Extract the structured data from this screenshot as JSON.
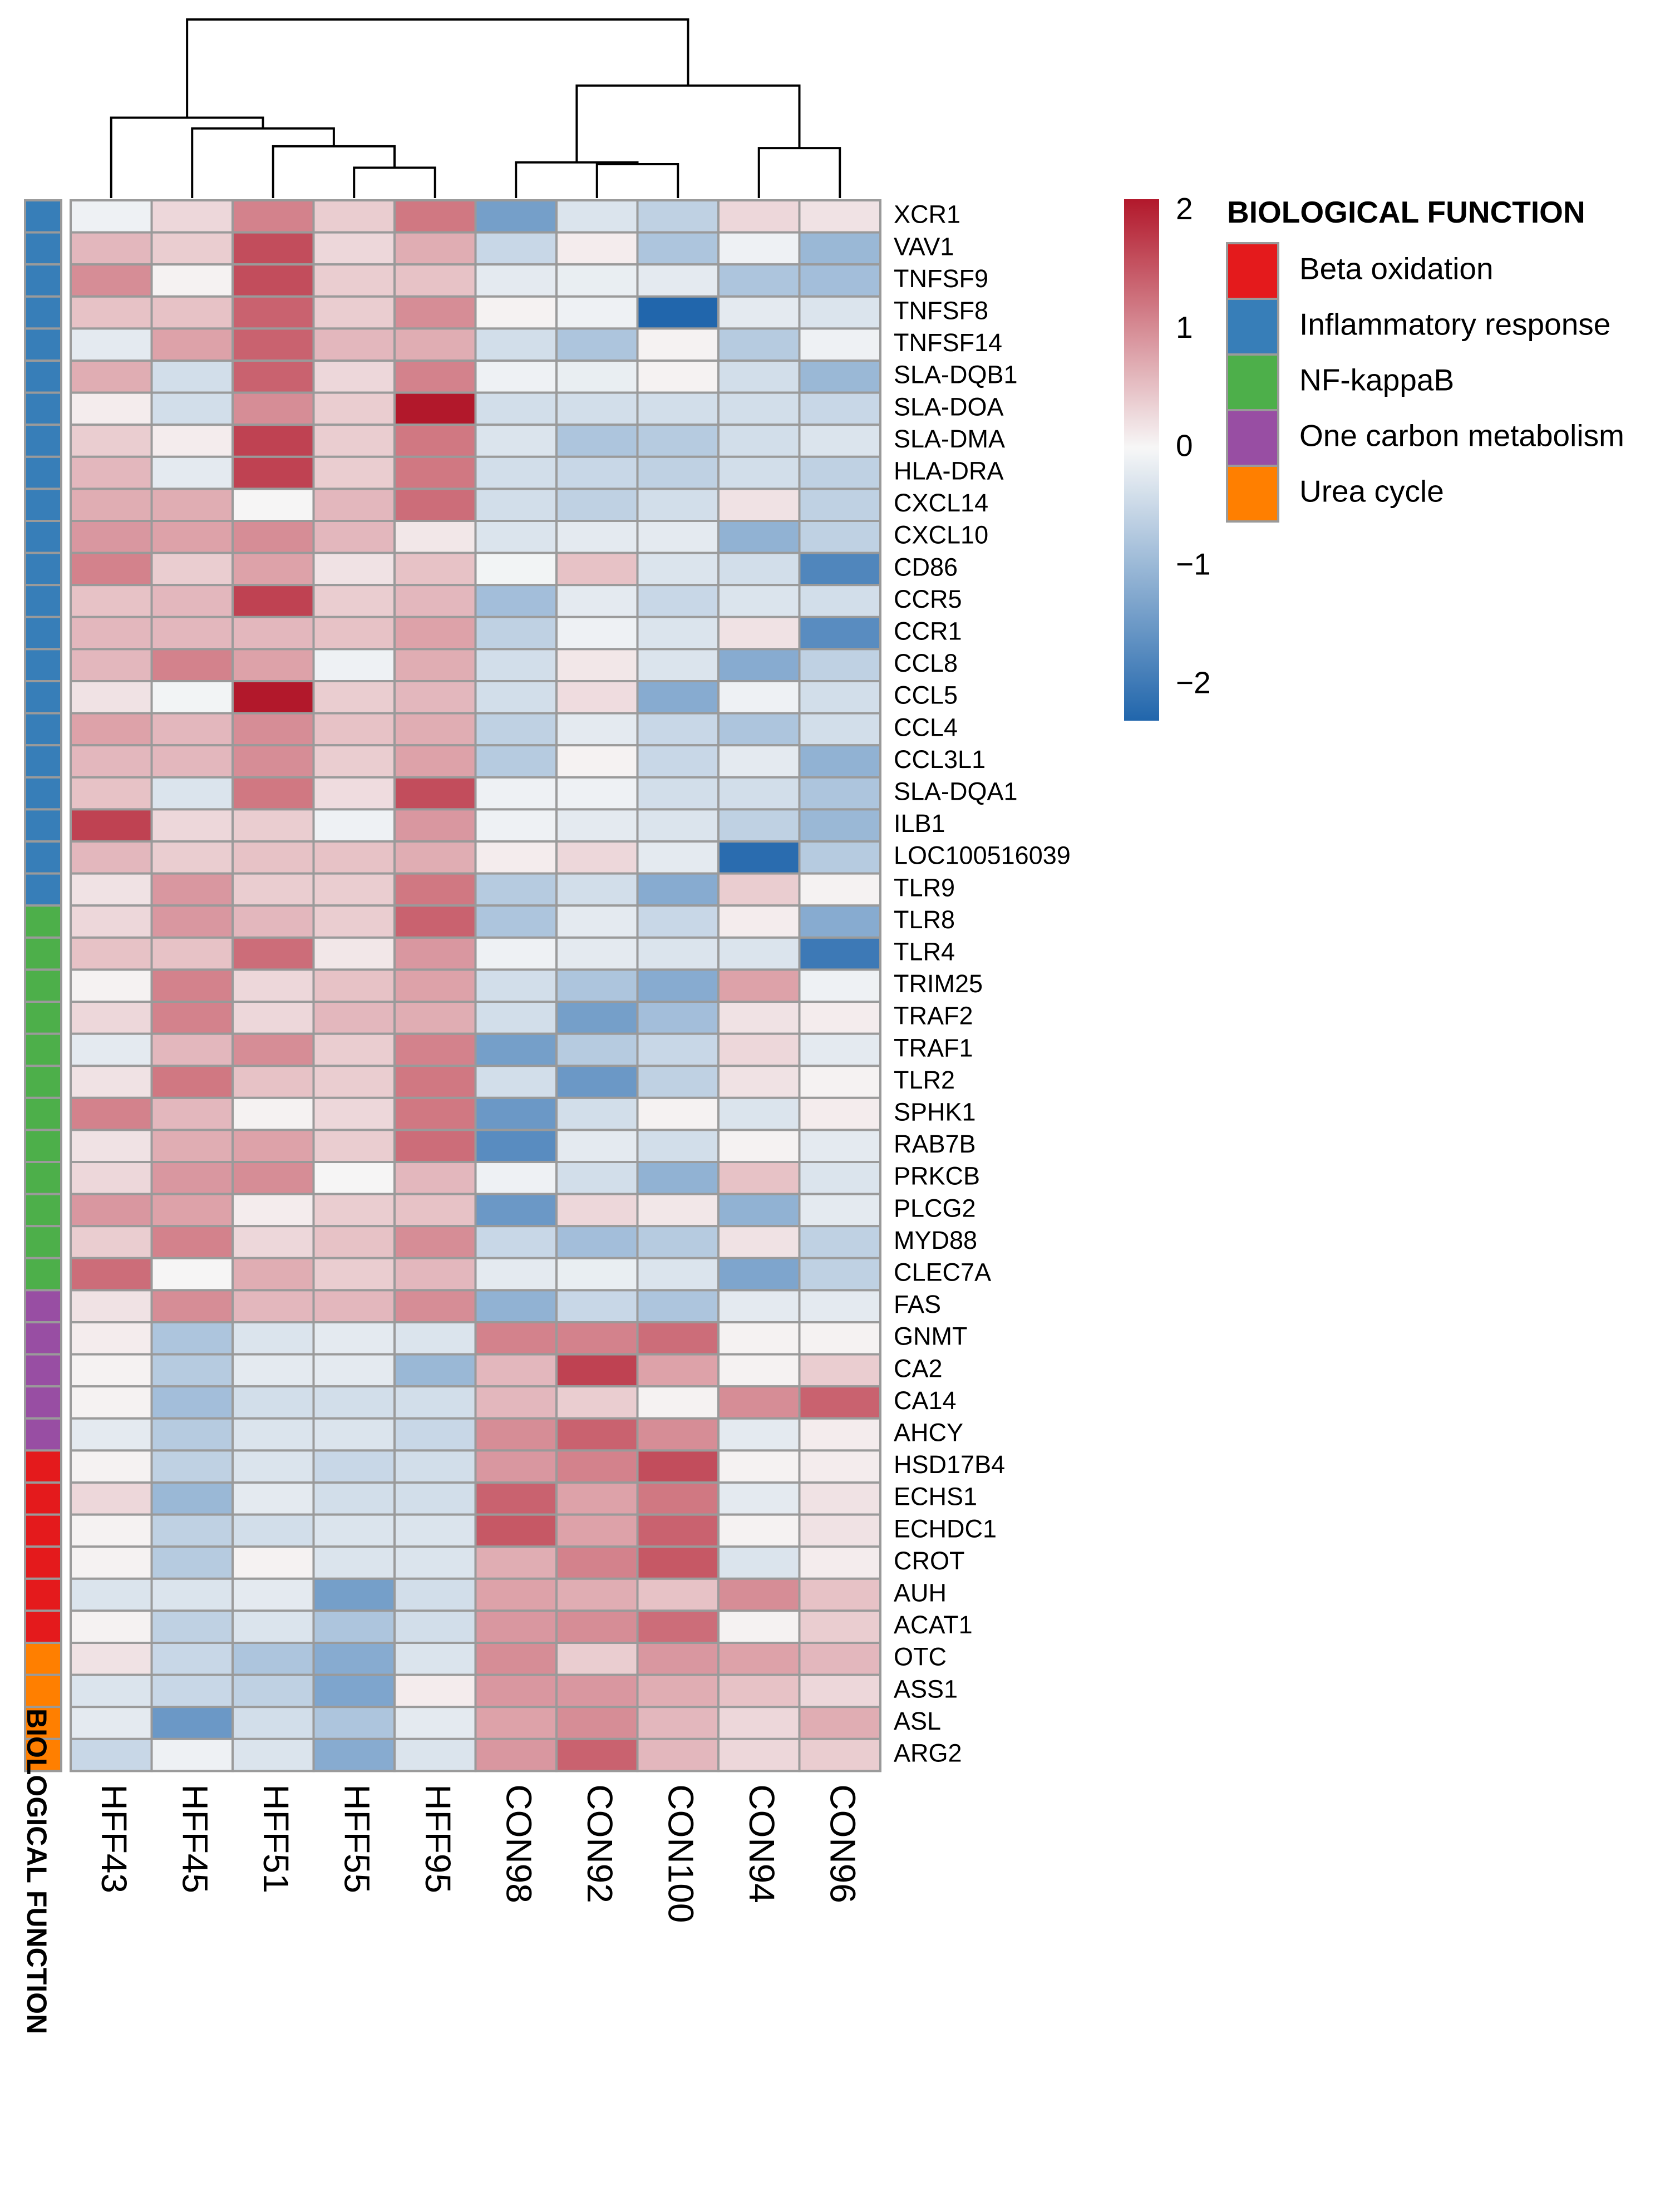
{
  "chart_data": {
    "type": "heatmap",
    "title": "",
    "columns": [
      "HFF43",
      "HFF45",
      "HFF51",
      "HFF55",
      "HFF95",
      "CON98",
      "CON92",
      "CON100",
      "CON94",
      "CON96"
    ],
    "rows": [
      "XCR1",
      "VAV1",
      "TNFSF9",
      "TNFSF8",
      "TNFSF14",
      "SLA-DQB1",
      "SLA-DOA",
      "SLA-DMA",
      "HLA-DRA",
      "CXCL14",
      "CXCL10",
      "CD86",
      "CCR5",
      "CCR1",
      "CCL8",
      "CCL5",
      "CCL4",
      "CCL3L1",
      "SLA-DQA1",
      "ILB1",
      "LOC100516039",
      "TLR9",
      "TLR8",
      "TLR4",
      "TRIM25",
      "TRAF2",
      "TRAF1",
      "TLR2",
      "SPHK1",
      "RAB7B",
      "PRKCB",
      "PLCG2",
      "MYD88",
      "CLEC7A",
      "FAS",
      "GNMT",
      "CA2",
      "CA14",
      "AHCY",
      "HSD17B4",
      "ECHS1",
      "ECHDC1",
      "CROT",
      "AUH",
      "ACAT1",
      "OTC",
      "ASS1",
      "ASL",
      "ARG2"
    ],
    "row_groups": [
      "Inflammatory response",
      "Inflammatory response",
      "Inflammatory response",
      "Inflammatory response",
      "Inflammatory response",
      "Inflammatory response",
      "Inflammatory response",
      "Inflammatory response",
      "Inflammatory response",
      "Inflammatory response",
      "Inflammatory response",
      "Inflammatory response",
      "Inflammatory response",
      "Inflammatory response",
      "Inflammatory response",
      "Inflammatory response",
      "Inflammatory response",
      "Inflammatory response",
      "Inflammatory response",
      "Inflammatory response",
      "Inflammatory response",
      "Inflammatory response",
      "NF-kappaB",
      "NF-kappaB",
      "NF-kappaB",
      "NF-kappaB",
      "NF-kappaB",
      "NF-kappaB",
      "NF-kappaB",
      "NF-kappaB",
      "NF-kappaB",
      "NF-kappaB",
      "NF-kappaB",
      "NF-kappaB",
      "One carbon metabolism",
      "One carbon metabolism",
      "One carbon metabolism",
      "One carbon metabolism",
      "One carbon metabolism",
      "Beta oxidation",
      "Beta oxidation",
      "Beta oxidation",
      "Beta oxidation",
      "Beta oxidation",
      "Beta oxidation",
      "Urea cycle",
      "Urea cycle",
      "Urea cycle",
      "Urea cycle"
    ],
    "values": [
      [
        -0.1,
        0.3,
        1.1,
        0.4,
        1.2,
        -1.4,
        -0.3,
        -0.6,
        0.3,
        0.2
      ],
      [
        0.6,
        0.4,
        1.6,
        0.3,
        0.7,
        -0.5,
        0.1,
        -0.8,
        -0.1,
        -1.0
      ],
      [
        1.0,
        0.05,
        1.6,
        0.4,
        0.5,
        -0.2,
        -0.15,
        -0.2,
        -0.8,
        -0.9
      ],
      [
        0.5,
        0.5,
        1.4,
        0.4,
        1.0,
        0.05,
        -0.1,
        -2.3,
        -0.2,
        -0.3
      ],
      [
        -0.2,
        0.8,
        1.4,
        0.6,
        0.7,
        -0.4,
        -0.8,
        0.05,
        -0.7,
        -0.1
      ],
      [
        0.7,
        -0.4,
        1.4,
        0.3,
        1.1,
        -0.1,
        -0.15,
        0.05,
        -0.4,
        -1.0
      ],
      [
        0.1,
        -0.4,
        1.0,
        0.4,
        2.1,
        -0.4,
        -0.4,
        -0.4,
        -0.4,
        -0.5
      ],
      [
        0.4,
        0.1,
        1.7,
        0.4,
        1.2,
        -0.3,
        -0.8,
        -0.7,
        -0.4,
        -0.3
      ],
      [
        0.6,
        -0.2,
        1.7,
        0.4,
        1.2,
        -0.4,
        -0.5,
        -0.6,
        -0.4,
        -0.6
      ],
      [
        0.7,
        0.7,
        0.02,
        0.6,
        1.3,
        -0.4,
        -0.6,
        -0.4,
        0.2,
        -0.6
      ],
      [
        0.9,
        0.8,
        1.0,
        0.6,
        0.15,
        -0.3,
        -0.2,
        -0.2,
        -1.1,
        -0.6
      ],
      [
        1.1,
        0.4,
        0.8,
        0.2,
        0.5,
        -0.05,
        0.5,
        -0.3,
        -0.4,
        -1.8
      ],
      [
        0.5,
        0.6,
        1.7,
        0.4,
        0.6,
        -0.9,
        -0.2,
        -0.5,
        -0.3,
        -0.4
      ],
      [
        0.6,
        0.6,
        0.6,
        0.5,
        0.8,
        -0.6,
        -0.1,
        -0.3,
        0.2,
        -1.7
      ],
      [
        0.6,
        1.1,
        0.8,
        -0.1,
        0.7,
        -0.4,
        0.15,
        -0.3,
        -1.2,
        -0.6
      ],
      [
        0.2,
        -0.05,
        2.1,
        0.4,
        0.6,
        -0.4,
        0.25,
        -1.2,
        -0.1,
        -0.4
      ],
      [
        0.8,
        0.6,
        1.0,
        0.5,
        0.7,
        -0.6,
        -0.2,
        -0.5,
        -0.8,
        -0.4
      ],
      [
        0.6,
        0.6,
        1.0,
        0.4,
        0.8,
        -0.7,
        0.05,
        -0.5,
        -0.2,
        -1.1
      ],
      [
        0.5,
        -0.3,
        1.2,
        0.25,
        1.6,
        -0.1,
        -0.1,
        -0.4,
        -0.4,
        -0.8
      ],
      [
        1.7,
        0.3,
        0.4,
        -0.1,
        0.9,
        -0.1,
        -0.2,
        -0.3,
        -0.6,
        -1.0
      ],
      [
        0.6,
        0.4,
        0.5,
        0.5,
        0.7,
        0.1,
        0.3,
        -0.2,
        -2.2,
        -0.7
      ],
      [
        0.2,
        0.9,
        0.4,
        0.4,
        1.2,
        -0.7,
        -0.4,
        -1.2,
        0.4,
        0.05
      ],
      [
        0.3,
        0.9,
        0.6,
        0.4,
        1.4,
        -0.8,
        -0.2,
        -0.5,
        0.1,
        -1.2
      ],
      [
        0.5,
        0.5,
        1.3,
        0.15,
        0.9,
        -0.1,
        -0.2,
        -0.3,
        -0.3,
        -2.0
      ],
      [
        0.05,
        1.1,
        0.3,
        0.5,
        0.8,
        -0.4,
        -0.8,
        -1.2,
        0.8,
        -0.1
      ],
      [
        0.3,
        1.1,
        0.3,
        0.6,
        0.7,
        -0.4,
        -1.4,
        -0.9,
        0.2,
        0.1
      ],
      [
        -0.2,
        0.6,
        1.0,
        0.4,
        1.1,
        -1.4,
        -0.7,
        -0.5,
        0.3,
        -0.2
      ],
      [
        0.2,
        1.2,
        0.5,
        0.4,
        1.2,
        -0.4,
        -1.5,
        -0.6,
        0.2,
        0.05
      ],
      [
        1.1,
        0.6,
        0.05,
        0.3,
        1.2,
        -1.5,
        -0.4,
        0.05,
        -0.3,
        0.1
      ],
      [
        0.2,
        0.7,
        0.8,
        0.4,
        1.3,
        -1.7,
        -0.2,
        -0.4,
        0.05,
        -0.2
      ],
      [
        0.3,
        0.9,
        1.0,
        0.02,
        0.6,
        -0.1,
        -0.4,
        -1.1,
        0.5,
        -0.3
      ],
      [
        0.9,
        0.8,
        0.1,
        0.4,
        0.5,
        -1.5,
        0.3,
        0.15,
        -1.1,
        -0.2
      ],
      [
        0.4,
        1.1,
        0.3,
        0.5,
        1.0,
        -0.5,
        -0.9,
        -0.7,
        0.2,
        -0.6
      ],
      [
        1.3,
        0.02,
        0.7,
        0.4,
        0.6,
        -0.2,
        -0.15,
        -0.3,
        -1.3,
        -0.6
      ],
      [
        0.2,
        1.0,
        0.6,
        0.6,
        1.0,
        -1.1,
        -0.5,
        -0.8,
        -0.2,
        -0.2
      ],
      [
        0.1,
        -0.8,
        -0.3,
        -0.2,
        -0.3,
        1.1,
        1.1,
        1.3,
        0.05,
        0.05
      ],
      [
        0.05,
        -0.7,
        -0.2,
        -0.2,
        -1.0,
        0.6,
        1.7,
        0.8,
        0.05,
        0.4
      ],
      [
        0.05,
        -0.9,
        -0.4,
        -0.4,
        -0.4,
        0.6,
        0.4,
        0.05,
        1.0,
        1.4
      ],
      [
        -0.2,
        -0.7,
        -0.3,
        -0.3,
        -0.5,
        1.0,
        1.4,
        1.0,
        -0.2,
        0.1
      ],
      [
        0.05,
        -0.6,
        -0.3,
        -0.5,
        -0.4,
        0.9,
        1.1,
        1.6,
        0.05,
        0.1
      ],
      [
        0.3,
        -1.0,
        -0.2,
        -0.4,
        -0.4,
        1.4,
        0.8,
        1.2,
        -0.2,
        0.2
      ],
      [
        0.05,
        -0.6,
        -0.4,
        -0.3,
        -0.3,
        1.5,
        0.8,
        1.4,
        0.05,
        0.2
      ],
      [
        0.05,
        -0.7,
        0.05,
        -0.3,
        -0.3,
        0.7,
        1.1,
        1.5,
        -0.3,
        0.1
      ],
      [
        -0.3,
        -0.3,
        -0.2,
        -1.4,
        -0.4,
        0.8,
        0.7,
        0.5,
        1.0,
        0.5
      ],
      [
        0.05,
        -0.6,
        -0.3,
        -0.8,
        -0.4,
        0.9,
        1.0,
        1.3,
        0.05,
        0.4
      ],
      [
        0.2,
        -0.5,
        -0.8,
        -1.2,
        -0.3,
        1.0,
        0.4,
        0.9,
        0.8,
        0.6
      ],
      [
        -0.3,
        -0.5,
        -0.6,
        -1.3,
        0.1,
        0.9,
        0.9,
        0.7,
        0.5,
        0.3
      ],
      [
        -0.2,
        -1.5,
        -0.4,
        -0.8,
        -0.2,
        0.8,
        1.0,
        0.6,
        0.3,
        0.7
      ],
      [
        -0.5,
        -0.1,
        -0.3,
        -1.2,
        -0.3,
        0.9,
        1.4,
        0.6,
        0.3,
        0.4
      ]
    ],
    "color_scale": {
      "ticks": [
        2,
        1,
        0,
        -1,
        -2
      ],
      "tick_labels": [
        "2",
        "1",
        "0",
        "−1",
        "−2"
      ],
      "min": -2.3,
      "max": 2.1,
      "low_color": "#2166ac",
      "mid_color": "#f7f7f7",
      "high_color": "#b2182b"
    },
    "annotation_title": "BIOLOGICAL FUNCTION",
    "legend": {
      "title": "BIOLOGICAL FUNCTION",
      "items": [
        {
          "label": "Beta oxidation",
          "color": "#e41a1c"
        },
        {
          "label": "Inflammatory response",
          "color": "#377eb8"
        },
        {
          "label": "NF-kappaB",
          "color": "#4daf4a"
        },
        {
          "label": "One carbon metabolism",
          "color": "#984ea3"
        },
        {
          "label": "Urea cycle",
          "color": "#ff7f00"
        }
      ]
    },
    "column_dendrogram": {
      "merges": [
        [
          -9,
          -10
        ],
        [
          -7,
          -8
        ],
        [
          -4,
          -5
        ],
        [
          -6,
          2
        ],
        [
          -3,
          3
        ],
        [
          4,
          1
        ],
        [
          -2,
          5
        ],
        [
          -1,
          7
        ],
        [
          8,
          6
        ]
      ],
      "heights": [
        0.28,
        0.19,
        0.17,
        0.2,
        0.29,
        0.63,
        0.39,
        0.45,
        1.0
      ]
    }
  }
}
